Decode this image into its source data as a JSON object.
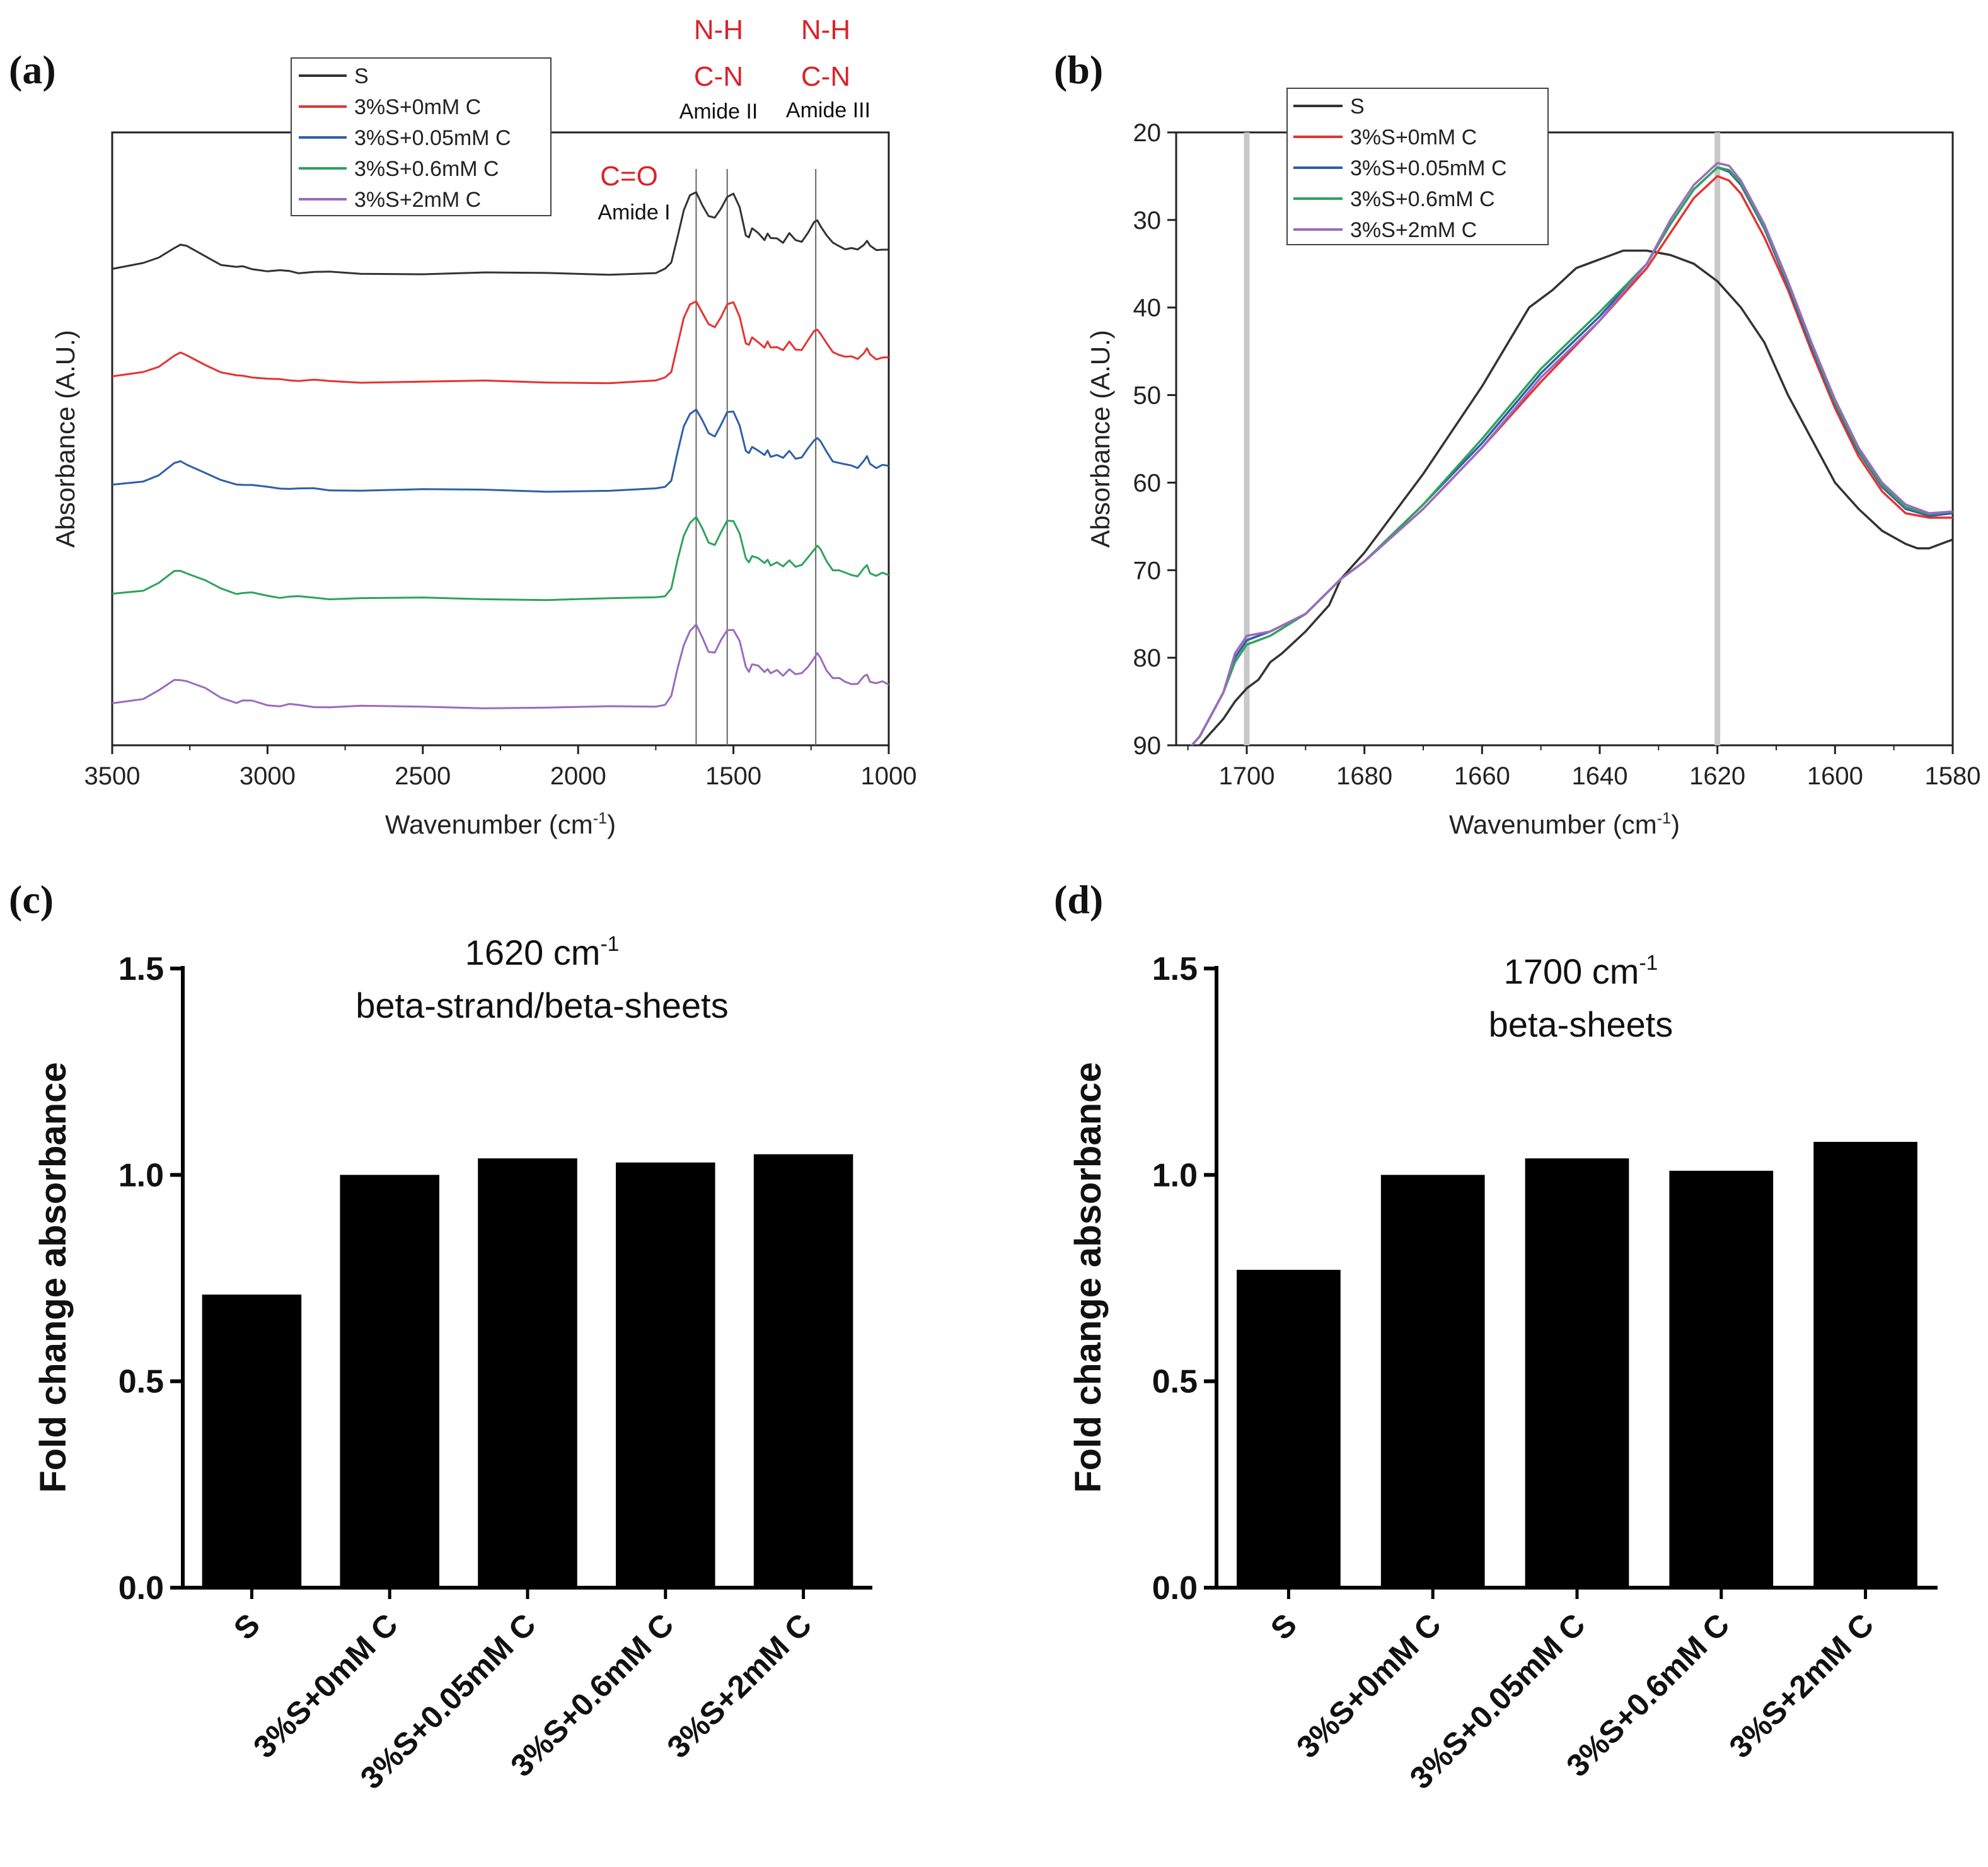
{
  "chart_data": [
    {
      "panel": "(a)",
      "type": "line",
      "xlabel": "Wavenumber (cm-1)",
      "xlabel_main": "Wavenumber (cm",
      "xlabel_sup": "-1",
      "xlabel_close": ")",
      "ylabel": "Absorbance (A.U.)",
      "xlim": [
        3500,
        1000
      ],
      "xticks": [
        "3500",
        "3000",
        "2500",
        "2000",
        "1500",
        "1000"
      ],
      "y_ticks_shown": false,
      "legend_position": "top-center",
      "series": [
        {
          "name": "S",
          "color": "#333333",
          "offset": 4
        },
        {
          "name": "3%S+0mM C",
          "color": "#e63232",
          "offset": 3
        },
        {
          "name": "3%S+0.05mM C",
          "color": "#2f5fa7",
          "offset": 2
        },
        {
          "name": "3%S+0.6mM C",
          "color": "#2ea35c",
          "offset": 1
        },
        {
          "name": "3%S+2mM C",
          "color": "#9b6bbd",
          "offset": 0
        }
      ],
      "profile": {
        "x": [
          3500,
          3400,
          3350,
          3300,
          3280,
          3260,
          3200,
          3150,
          3100,
          3080,
          3050,
          3000,
          2960,
          2930,
          2900,
          2850,
          2800,
          2700,
          2500,
          2300,
          2100,
          1900,
          1750,
          1720,
          1700,
          1680,
          1660,
          1640,
          1620,
          1600,
          1580,
          1560,
          1540,
          1520,
          1500,
          1480,
          1460,
          1450,
          1440,
          1420,
          1400,
          1390,
          1380,
          1360,
          1340,
          1320,
          1300,
          1280,
          1260,
          1240,
          1230,
          1220,
          1200,
          1180,
          1160,
          1140,
          1120,
          1100,
          1080,
          1070,
          1060,
          1040,
          1020,
          1000
        ],
        "y": [
          0.15,
          0.3,
          0.52,
          0.85,
          0.9,
          0.85,
          0.58,
          0.3,
          0.18,
          0.22,
          0.18,
          0.08,
          0.07,
          0.09,
          0.05,
          0.04,
          0.03,
          0.02,
          0.01,
          0.01,
          0.0,
          0.0,
          0.03,
          0.12,
          0.35,
          1.2,
          2.0,
          2.45,
          2.6,
          2.2,
          1.8,
          1.75,
          2.1,
          2.45,
          2.5,
          2.1,
          1.25,
          1.15,
          1.4,
          1.3,
          1.1,
          1.25,
          1.1,
          1.15,
          1.0,
          1.25,
          1.05,
          1.05,
          1.3,
          1.6,
          1.7,
          1.55,
          1.2,
          0.95,
          0.9,
          0.8,
          0.78,
          0.75,
          0.95,
          1.05,
          0.85,
          0.75,
          0.8,
          0.75
        ]
      },
      "markers": [
        {
          "x": 1620,
          "labels": [
            "N-H",
            "C-N",
            "Amide II"
          ]
        },
        {
          "x": 1520,
          "labels": []
        },
        {
          "x": 1235,
          "labels": [
            "N-H",
            "C-N",
            "Amide III"
          ]
        }
      ],
      "annotations": {
        "amide1_red": "C=O",
        "amide1_label": "Amide I",
        "amide2_red_1": "N-H",
        "amide2_red_2": "C-N",
        "amide2_label": "Amide II",
        "amide3_red_1": "N-H",
        "amide3_red_2": "C-N",
        "amide3_label": "Amide III"
      }
    },
    {
      "panel": "(b)",
      "type": "line",
      "xlabel": "Wavenumber (cm-1)",
      "xlabel_main": "Wavenumber (cm",
      "xlabel_sup": "-1",
      "xlabel_close": ")",
      "ylabel": "Absorbance (A.U.)",
      "xlim": [
        1712,
        1580
      ],
      "ylim_inverted": [
        20,
        90
      ],
      "xticks": [
        "1700",
        "1680",
        "1660",
        "1640",
        "1620",
        "1600",
        "1580"
      ],
      "xtick_values": [
        1700,
        1680,
        1660,
        1640,
        1620,
        1600,
        1580
      ],
      "yticks": [
        "20",
        "30",
        "40",
        "50",
        "60",
        "70",
        "80",
        "90"
      ],
      "ytick_values": [
        20,
        30,
        40,
        50,
        60,
        70,
        80,
        90
      ],
      "vlines": [
        1700,
        1620
      ],
      "legend_position": "top-left",
      "series": [
        {
          "name": "S",
          "color": "#333333",
          "x": [
            1712,
            1708,
            1704,
            1702,
            1700,
            1698,
            1696,
            1694,
            1690,
            1686,
            1684,
            1680,
            1670,
            1660,
            1652,
            1648,
            1644,
            1640,
            1636,
            1632,
            1628,
            1624,
            1620,
            1616,
            1612,
            1608,
            1604,
            1600,
            1596,
            1592,
            1588,
            1586,
            1584,
            1582,
            1580
          ],
          "y": [
            92,
            90,
            87,
            85,
            83.5,
            82.5,
            80.5,
            79.5,
            77,
            74,
            71,
            68,
            59,
            49,
            40,
            38,
            35.5,
            34.5,
            33.5,
            33.5,
            34,
            35,
            37,
            40,
            44,
            50,
            55,
            60,
            63,
            65.5,
            67,
            67.5,
            67.5,
            67,
            66.5
          ]
        },
        {
          "name": "3%S+0mM C",
          "color": "#e63232",
          "x": [
            1712,
            1708,
            1704,
            1702,
            1700,
            1696,
            1690,
            1684,
            1680,
            1670,
            1660,
            1650,
            1640,
            1632,
            1628,
            1624,
            1620,
            1618,
            1616,
            1612,
            1608,
            1604,
            1600,
            1596,
            1592,
            1588,
            1584,
            1580
          ],
          "y": [
            92,
            89,
            84,
            80,
            78,
            77,
            75,
            71,
            69,
            63,
            56,
            48.5,
            41.5,
            35.5,
            31.5,
            27.5,
            25,
            25.5,
            27,
            32,
            38,
            45,
            51.5,
            57,
            61,
            63.5,
            64,
            64
          ]
        },
        {
          "name": "3%S+0.05mM C",
          "color": "#2f5fa7",
          "x": [
            1712,
            1708,
            1704,
            1702,
            1700,
            1696,
            1690,
            1684,
            1680,
            1670,
            1660,
            1650,
            1640,
            1632,
            1628,
            1624,
            1620,
            1618,
            1616,
            1612,
            1608,
            1604,
            1600,
            1596,
            1592,
            1588,
            1584,
            1580
          ],
          "y": [
            92,
            89,
            84,
            80,
            78,
            77,
            75,
            71,
            69,
            62.5,
            55.5,
            47.5,
            41,
            35,
            30.5,
            26.5,
            24,
            24.5,
            26,
            31,
            37.5,
            44.5,
            51,
            56.5,
            60.5,
            63,
            63.8,
            63.5
          ]
        },
        {
          "name": "3%S+0.6mM C",
          "color": "#2ea35c",
          "x": [
            1712,
            1708,
            1704,
            1702,
            1700,
            1696,
            1690,
            1684,
            1680,
            1670,
            1660,
            1650,
            1640,
            1632,
            1628,
            1624,
            1620,
            1618,
            1616,
            1612,
            1608,
            1604,
            1600,
            1596,
            1592,
            1588,
            1584,
            1580
          ],
          "y": [
            92,
            89,
            84,
            80.5,
            78.5,
            77.5,
            75,
            71,
            69,
            62.5,
            55,
            47,
            40.5,
            35,
            30.5,
            26.5,
            24,
            24.3,
            25.8,
            30.8,
            37.2,
            44.2,
            50.8,
            56.3,
            60.3,
            62.8,
            63.6,
            63.3
          ]
        },
        {
          "name": "3%S+2mM C",
          "color": "#9b6bbd",
          "x": [
            1712,
            1708,
            1704,
            1702,
            1700,
            1696,
            1690,
            1684,
            1680,
            1670,
            1660,
            1650,
            1640,
            1632,
            1628,
            1624,
            1620,
            1618,
            1616,
            1612,
            1608,
            1604,
            1600,
            1596,
            1592,
            1588,
            1584,
            1580
          ],
          "y": [
            92,
            89,
            84,
            79.5,
            77.5,
            77,
            75,
            71,
            69,
            63,
            56,
            48,
            41.5,
            35,
            30,
            26,
            23.5,
            23.8,
            25.5,
            30.5,
            37,
            44,
            50.5,
            56,
            60,
            62.5,
            63.5,
            63.3
          ]
        }
      ]
    },
    {
      "panel": "(c)",
      "type": "bar",
      "title_line1_main": "1620 cm",
      "title_line1_sup": "-1",
      "title_line2": "beta-strand/beta-sheets",
      "ylabel": "Fold change absorbance",
      "ylim": [
        0,
        1.5
      ],
      "yticks": [
        "0.0",
        "0.5",
        "1.0",
        "1.5"
      ],
      "ytick_values": [
        0,
        0.5,
        1.0,
        1.5
      ],
      "categories": [
        "S",
        "3%S+0mM C",
        "3%S+0.05mM C",
        "3%S+0.6mM C",
        "3%S+2mM C"
      ],
      "values": [
        0.71,
        1.0,
        1.04,
        1.03,
        1.05
      ],
      "bar_color": "#000000"
    },
    {
      "panel": "(d)",
      "type": "bar",
      "title_line1_main": "1700 cm",
      "title_line1_sup": "-1",
      "title_line2": "beta-sheets",
      "ylabel": "Fold change absorbance",
      "ylim": [
        0,
        1.5
      ],
      "yticks": [
        "0.0",
        "0.5",
        "1.0",
        "1.5"
      ],
      "ytick_values": [
        0,
        0.5,
        1.0,
        1.5
      ],
      "categories": [
        "S",
        "3%S+0mM C",
        "3%S+0.05mM C",
        "3%S+0.6mM C",
        "3%S+2mM C"
      ],
      "values": [
        0.77,
        1.0,
        1.04,
        1.01,
        1.08
      ],
      "bar_color": "#000000"
    }
  ]
}
